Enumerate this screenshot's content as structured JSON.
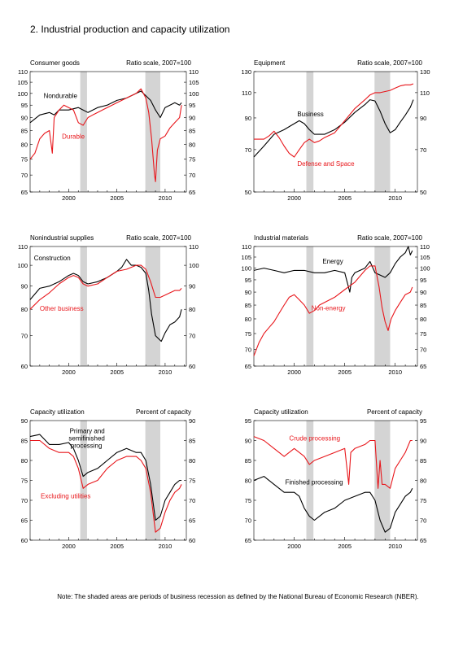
{
  "title": "2.  Industrial production and capacity utilization",
  "note": "Note: The shaded areas are periods of business recession as defined by the National Bureau of Economic Research (NBER).",
  "colors": {
    "black_series": "#000000",
    "red_series": "#e8161b",
    "recession_shade": "#d4d4d4"
  },
  "recessions": [
    [
      2001.2,
      2001.9
    ],
    [
      2007.95,
      2009.5
    ]
  ],
  "x_ticks": [
    2000,
    2005,
    2010
  ],
  "x_range": [
    1996.0,
    2012.2
  ],
  "chart_data": [
    {
      "type": "line",
      "title": "Consumer goods",
      "scale_label": "Ratio scale, 2007=100",
      "log_scale": true,
      "ylim": [
        65,
        110
      ],
      "yticks": [
        65,
        70,
        75,
        80,
        85,
        90,
        95,
        100,
        105,
        110
      ],
      "series": [
        {
          "name": "Nondurable",
          "color": "black",
          "x": [
            1996.0,
            1997.0,
            1998.0,
            1998.5,
            1999.0,
            2000.0,
            2001.0,
            2001.5,
            2002.0,
            2003.0,
            2004.0,
            2005.0,
            2006.0,
            2007.0,
            2007.5,
            2008.0,
            2008.5,
            2009.0,
            2009.5,
            2010.0,
            2010.5,
            2011.0,
            2011.5,
            2011.7
          ],
          "y": [
            88,
            91,
            92,
            91,
            93,
            93,
            94,
            93,
            92,
            94,
            95,
            97,
            98,
            100,
            101,
            99,
            97,
            93,
            90,
            94,
            95,
            96,
            95,
            96
          ]
        },
        {
          "name": "Durable",
          "color": "red",
          "x": [
            1996.0,
            1996.5,
            1997.0,
            1997.5,
            1998.0,
            1998.3,
            1998.5,
            1999.0,
            1999.5,
            2000.0,
            2000.5,
            2001.0,
            2001.5,
            2002.0,
            2002.5,
            2003.0,
            2004.0,
            2005.0,
            2006.0,
            2007.0,
            2007.5,
            2008.0,
            2008.3,
            2008.6,
            2008.9,
            2009.0,
            2009.2,
            2009.5,
            2010.0,
            2010.5,
            2011.0,
            2011.5,
            2011.7
          ],
          "y": [
            75,
            77,
            82,
            84,
            85,
            77,
            90,
            93,
            95,
            94,
            93,
            88,
            87,
            90,
            91,
            92,
            94,
            96,
            98,
            100,
            102,
            98,
            92,
            82,
            70,
            68,
            78,
            82,
            83,
            86,
            88,
            90,
            95
          ]
        }
      ],
      "labels": [
        {
          "text": "Nondurable",
          "color": "black",
          "x": 1997.4,
          "y": 98
        },
        {
          "text": "Durable",
          "color": "red",
          "x": 1999.3,
          "y": 82
        }
      ]
    },
    {
      "type": "line",
      "title": "Equipment",
      "scale_label": "Ratio scale, 2007=100",
      "log_scale": true,
      "ylim": [
        50,
        130
      ],
      "yticks": [
        50,
        70,
        90,
        110,
        130
      ],
      "series": [
        {
          "name": "Business",
          "color": "black",
          "x": [
            1996.0,
            1997.0,
            1998.0,
            1999.0,
            2000.0,
            2000.5,
            2001.0,
            2001.5,
            2002.0,
            2003.0,
            2004.0,
            2005.0,
            2006.0,
            2007.0,
            2007.5,
            2008.0,
            2008.5,
            2009.0,
            2009.5,
            2010.0,
            2010.5,
            2011.0,
            2011.5,
            2011.8
          ],
          "y": [
            66,
            72,
            79,
            82,
            86,
            88,
            86,
            82,
            79,
            79,
            82,
            87,
            94,
            100,
            104,
            103,
            95,
            86,
            80,
            82,
            87,
            92,
            98,
            104
          ]
        },
        {
          "name": "Defense and Space",
          "color": "red",
          "x": [
            1996.0,
            1996.5,
            1997.0,
            1997.5,
            1998.0,
            1998.5,
            1999.0,
            1999.5,
            2000.0,
            2000.5,
            2001.0,
            2001.5,
            2002.0,
            2002.5,
            2003.0,
            2004.0,
            2005.0,
            2006.0,
            2007.0,
            2007.5,
            2008.0,
            2008.5,
            2009.0,
            2009.5,
            2010.0,
            2010.5,
            2011.0,
            2011.5,
            2011.8
          ],
          "y": [
            76,
            76,
            76,
            78,
            81,
            77,
            72,
            68,
            66,
            70,
            74,
            76,
            74,
            75,
            77,
            80,
            88,
            97,
            104,
            108,
            110,
            110,
            111,
            112,
            114,
            116,
            117,
            117,
            118
          ]
        }
      ],
      "labels": [
        {
          "text": "Business",
          "color": "black",
          "x": 2000.3,
          "y": 91
        },
        {
          "text": "Defense and Space",
          "color": "red",
          "x": 2000.3,
          "y": 61.5
        }
      ]
    },
    {
      "type": "line",
      "title": "Nonindustrial supplies",
      "scale_label": "Ratio scale, 2007=100",
      "log_scale": true,
      "ylim": [
        60,
        110
      ],
      "yticks": [
        60,
        70,
        80,
        90,
        100,
        110
      ],
      "series": [
        {
          "name": "Construction",
          "color": "black",
          "x": [
            1996.0,
            1997.0,
            1998.0,
            1999.0,
            2000.0,
            2000.5,
            2001.0,
            2001.5,
            2002.0,
            2003.0,
            2004.0,
            2005.0,
            2005.5,
            2006.0,
            2006.5,
            2007.0,
            2007.5,
            2008.0,
            2008.3,
            2008.6,
            2009.0,
            2009.3,
            2009.6,
            2010.0,
            2010.5,
            2011.0,
            2011.5,
            2011.7
          ],
          "y": [
            84,
            89,
            90,
            92,
            95,
            96,
            95,
            92,
            91,
            92,
            94,
            97,
            99,
            103,
            100,
            100,
            99,
            96,
            88,
            78,
            70,
            69,
            68,
            71,
            74,
            75,
            77,
            80
          ]
        },
        {
          "name": "Other business",
          "color": "red",
          "x": [
            1996.0,
            1997.0,
            1998.0,
            1999.0,
            2000.0,
            2000.5,
            2001.0,
            2001.5,
            2002.0,
            2003.0,
            2004.0,
            2005.0,
            2006.0,
            2007.0,
            2007.5,
            2008.0,
            2008.5,
            2009.0,
            2009.5,
            2010.0,
            2010.5,
            2011.0,
            2011.5,
            2011.7
          ],
          "y": [
            80,
            84,
            87,
            91,
            94,
            95,
            94,
            91,
            90,
            91,
            94,
            97,
            98,
            100,
            100,
            98,
            92,
            85,
            85,
            86,
            87,
            88,
            88,
            89
          ]
        }
      ],
      "labels": [
        {
          "text": "Construction",
          "color": "black",
          "x": 1996.4,
          "y": 102.5
        },
        {
          "text": "Other business",
          "color": "red",
          "x": 1997.0,
          "y": 79.5
        }
      ]
    },
    {
      "type": "line",
      "title": "Industrial materials",
      "scale_label": "Ratio scale, 2007=100",
      "log_scale": true,
      "ylim": [
        65,
        110
      ],
      "yticks": [
        65,
        70,
        75,
        80,
        85,
        90,
        95,
        100,
        105,
        110
      ],
      "series": [
        {
          "name": "Energy",
          "color": "black",
          "x": [
            1996.0,
            1997.0,
            1998.0,
            1999.0,
            2000.0,
            2001.0,
            2002.0,
            2003.0,
            2004.0,
            2005.0,
            2005.5,
            2005.7,
            2006.0,
            2007.0,
            2007.5,
            2008.0,
            2008.5,
            2009.0,
            2009.5,
            2010.0,
            2010.5,
            2011.0,
            2011.3,
            2011.5,
            2011.7
          ],
          "y": [
            99,
            100,
            99,
            98,
            99,
            99,
            98,
            98,
            99,
            98,
            90,
            96,
            98,
            100,
            103,
            98,
            97,
            96,
            98,
            102,
            105,
            107,
            110,
            106,
            108
          ]
        },
        {
          "name": "Non-energy",
          "color": "red",
          "x": [
            1996.0,
            1996.5,
            1997.0,
            1997.5,
            1998.0,
            1998.5,
            1999.0,
            1999.5,
            2000.0,
            2000.5,
            2001.0,
            2001.5,
            2002.0,
            2002.5,
            2003.0,
            2004.0,
            2005.0,
            2006.0,
            2007.0,
            2007.5,
            2008.0,
            2008.4,
            2008.7,
            2009.0,
            2009.3,
            2009.6,
            2010.0,
            2010.5,
            2011.0,
            2011.5,
            2011.7
          ],
          "y": [
            68,
            72,
            75,
            77,
            79,
            82,
            85,
            88,
            89,
            87,
            85,
            82,
            83,
            85,
            86,
            88,
            91,
            94,
            99,
            101,
            101,
            92,
            84,
            79,
            76,
            80,
            83,
            86,
            89,
            90,
            92
          ]
        }
      ],
      "labels": [
        {
          "text": "Energy",
          "color": "black",
          "x": 2002.8,
          "y": 102
        },
        {
          "text": "Non-energy",
          "color": "red",
          "x": 2001.7,
          "y": 83
        }
      ]
    },
    {
      "type": "line",
      "title": "Capacity utilization",
      "scale_label": "Percent of capacity",
      "log_scale": false,
      "ylim": [
        60,
        90
      ],
      "yticks": [
        60,
        65,
        70,
        75,
        80,
        85,
        90
      ],
      "series": [
        {
          "name": "Primary and semifinished processing",
          "color": "black",
          "x": [
            1996.0,
            1997.0,
            1998.0,
            1999.0,
            2000.0,
            2000.5,
            2001.0,
            2001.5,
            2002.0,
            2003.0,
            2004.0,
            2005.0,
            2006.0,
            2007.0,
            2007.5,
            2008.0,
            2008.5,
            2009.0,
            2009.5,
            2010.0,
            2010.5,
            2011.0,
            2011.5,
            2011.7
          ],
          "y": [
            86,
            86.5,
            84,
            84,
            84.5,
            83,
            80,
            76,
            77,
            78,
            80,
            82,
            83,
            82,
            82,
            80,
            74,
            65,
            66,
            70,
            72,
            74,
            75,
            75
          ]
        },
        {
          "name": "Excluding utilities",
          "color": "red",
          "x": [
            1996.0,
            1997.0,
            1998.0,
            1999.0,
            2000.0,
            2000.5,
            2001.0,
            2001.5,
            2002.0,
            2003.0,
            2004.0,
            2005.0,
            2006.0,
            2007.0,
            2007.5,
            2008.0,
            2008.5,
            2009.0,
            2009.5,
            2010.0,
            2010.5,
            2011.0,
            2011.5,
            2011.7
          ],
          "y": [
            85,
            85,
            83,
            82,
            82,
            81,
            78,
            73,
            74,
            75,
            78,
            80,
            81,
            81,
            80,
            78,
            72,
            62,
            63,
            67,
            70,
            72,
            73,
            74
          ]
        }
      ],
      "labels": [
        {
          "text": "Primary and",
          "color": "black",
          "x": 2000.1,
          "y": 86.8
        },
        {
          "text": "semifinished",
          "color": "black",
          "x": 2000.0,
          "y": 85
        },
        {
          "text": "processing",
          "color": "black",
          "x": 2000.2,
          "y": 83.2
        },
        {
          "text": "Excluding utilities",
          "color": "red",
          "x": 1997.1,
          "y": 70.5
        }
      ]
    },
    {
      "type": "line",
      "title": "Capacity utilization",
      "scale_label": "Percent of capacity",
      "log_scale": false,
      "ylim": [
        65,
        95
      ],
      "yticks": [
        65,
        70,
        75,
        80,
        85,
        90,
        95
      ],
      "series": [
        {
          "name": "Finished processing",
          "color": "black",
          "x": [
            1996.0,
            1997.0,
            1998.0,
            1999.0,
            2000.0,
            2000.5,
            2001.0,
            2001.5,
            2002.0,
            2003.0,
            2004.0,
            2005.0,
            2006.0,
            2007.0,
            2007.5,
            2008.0,
            2008.5,
            2009.0,
            2009.5,
            2010.0,
            2010.5,
            2011.0,
            2011.5,
            2011.7
          ],
          "y": [
            80,
            81,
            79,
            77,
            77,
            76,
            73,
            71,
            70,
            72,
            73,
            75,
            76,
            77,
            77,
            75,
            70,
            67,
            68,
            72,
            74,
            76,
            77,
            78
          ]
        },
        {
          "name": "Crude processing",
          "color": "red",
          "x": [
            1996.0,
            1997.0,
            1998.0,
            1999.0,
            2000.0,
            2000.5,
            2001.0,
            2001.5,
            2002.0,
            2003.0,
            2004.0,
            2005.0,
            2005.4,
            2005.6,
            2006.0,
            2007.0,
            2007.5,
            2008.0,
            2008.3,
            2008.5,
            2008.7,
            2009.0,
            2009.5,
            2010.0,
            2010.5,
            2011.0,
            2011.5,
            2011.7
          ],
          "y": [
            91,
            90,
            88,
            86,
            88,
            87,
            86,
            84,
            85,
            86,
            87,
            88,
            79,
            87,
            88,
            89,
            90,
            90,
            78,
            85,
            79,
            79,
            78,
            83,
            85,
            87,
            90,
            90
          ]
        }
      ],
      "labels": [
        {
          "text": "Crude processing",
          "color": "red",
          "x": 1999.5,
          "y": 90
        },
        {
          "text": "Finished processing",
          "color": "black",
          "x": 1999.1,
          "y": 79
        }
      ]
    }
  ]
}
